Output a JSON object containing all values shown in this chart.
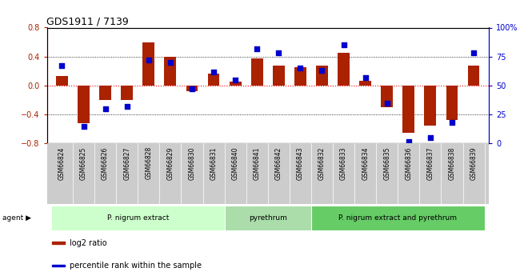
{
  "title": "GDS1911 / 7139",
  "samples": [
    "GSM66824",
    "GSM66825",
    "GSM66826",
    "GSM66827",
    "GSM66828",
    "GSM66829",
    "GSM66830",
    "GSM66831",
    "GSM66840",
    "GSM66841",
    "GSM66842",
    "GSM66843",
    "GSM66832",
    "GSM66833",
    "GSM66834",
    "GSM66835",
    "GSM66836",
    "GSM66837",
    "GSM66838",
    "GSM66839"
  ],
  "log2_ratio": [
    0.13,
    -0.52,
    -0.2,
    -0.2,
    0.6,
    0.4,
    -0.08,
    0.17,
    0.05,
    0.38,
    0.27,
    0.25,
    0.27,
    0.45,
    0.07,
    -0.3,
    -0.65,
    -0.55,
    -0.47,
    0.28
  ],
  "percentile": [
    67,
    15,
    30,
    32,
    72,
    70,
    47,
    62,
    55,
    82,
    78,
    65,
    63,
    85,
    57,
    35,
    2,
    5,
    18,
    78
  ],
  "bar_color": "#aa2200",
  "dot_color": "#0000cc",
  "ylim_left": [
    -0.8,
    0.8
  ],
  "ylim_right": [
    0,
    100
  ],
  "yticks_left": [
    -0.8,
    -0.4,
    0.0,
    0.4,
    0.8
  ],
  "yticks_right": [
    0,
    25,
    50,
    75,
    100
  ],
  "ytick_labels_right": [
    "0",
    "25",
    "50",
    "75",
    "100%"
  ],
  "groups": [
    {
      "label": "P. nigrum extract",
      "start": 0,
      "end": 8,
      "color": "#ccffcc"
    },
    {
      "label": "pyrethrum",
      "start": 8,
      "end": 12,
      "color": "#aaddaa"
    },
    {
      "label": "P. nigrum extract and pyrethrum",
      "start": 12,
      "end": 20,
      "color": "#66cc66"
    }
  ],
  "agent_label": "agent ▶",
  "legend_items": [
    {
      "label": "log2 ratio",
      "color": "#aa2200"
    },
    {
      "label": "percentile rank within the sample",
      "color": "#0000cc"
    }
  ],
  "background_color": "#ffffff",
  "plot_bg_color": "#ffffff",
  "xtick_bg_color": "#cccccc",
  "zero_line_color": "#ff0000",
  "grid_color": "#000000",
  "bar_width": 0.55,
  "dot_size": 22
}
